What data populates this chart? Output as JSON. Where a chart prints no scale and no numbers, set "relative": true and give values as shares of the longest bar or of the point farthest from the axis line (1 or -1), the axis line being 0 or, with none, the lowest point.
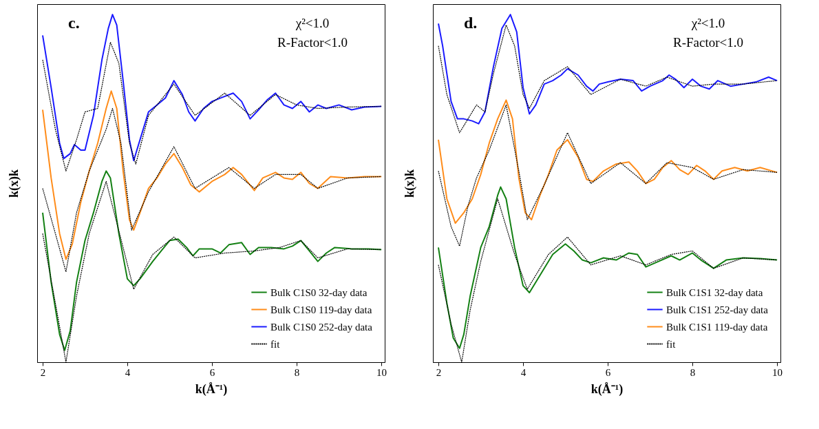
{
  "chart_data": [
    {
      "type": "line",
      "relative": true,
      "xlim": [
        1.87,
        10.08
      ],
      "xticks": [
        {
          "value": 2,
          "label": "2"
        },
        {
          "value": 4,
          "label": "4"
        },
        {
          "value": 6,
          "label": "6"
        },
        {
          "value": 8,
          "label": "8"
        },
        {
          "value": 10,
          "label": "10"
        }
      ],
      "xlabel": "k(Å⁻¹)",
      "ylabel": "k(x)k",
      "tick_labels": "x",
      "grid": false,
      "legend": "bottom right",
      "annotations": [
        "c.",
        "χ²<1.0",
        "R-Factor<1.0"
      ],
      "series": [
        {
          "name": "Bulk C1S0 32-day data",
          "color": "#138013",
          "line_style": "solid",
          "x": [
            2,
            2.2,
            2.4,
            2.52,
            2.65,
            2.8,
            3,
            3.2,
            3.4,
            3.5,
            3.6,
            3.8,
            4,
            4.15,
            4.3,
            4.6,
            4.8,
            5,
            5.2,
            5.4,
            5.55,
            5.7,
            6,
            6.2,
            6.4,
            6.7,
            6.9,
            7.1,
            7.4,
            7.7,
            7.9,
            8.1,
            8.3,
            8.5,
            8.7,
            8.9,
            9.3,
            9.7,
            10
          ],
          "values": [
            0.43,
            0.23,
            0.08,
            0.034,
            0.09,
            0.23,
            0.35,
            0.43,
            0.52,
            0.55,
            0.53,
            0.37,
            0.24,
            0.22,
            0.24,
            0.29,
            0.32,
            0.35,
            0.354,
            0.33,
            0.306,
            0.326,
            0.326,
            0.314,
            0.338,
            0.344,
            0.31,
            0.33,
            0.33,
            0.326,
            0.334,
            0.35,
            0.32,
            0.29,
            0.314,
            0.33,
            0.326,
            0.326,
            0.324
          ]
        },
        {
          "name": "Bulk C1S0 119-day data",
          "color": "#ff8c1a",
          "line_style": "solid",
          "x": [
            2,
            2.2,
            2.4,
            2.55,
            2.7,
            2.9,
            3.1,
            3.3,
            3.5,
            3.62,
            3.75,
            3.9,
            4.05,
            4.15,
            4.3,
            4.5,
            4.7,
            4.9,
            5.1,
            5.3,
            5.5,
            5.7,
            6,
            6.3,
            6.5,
            6.7,
            7,
            7.2,
            7.5,
            7.7,
            7.9,
            8.1,
            8.3,
            8.5,
            8.8,
            9.2,
            9.6,
            10
          ],
          "values": [
            0.726,
            0.53,
            0.37,
            0.296,
            0.34,
            0.46,
            0.55,
            0.63,
            0.73,
            0.78,
            0.73,
            0.55,
            0.41,
            0.38,
            0.43,
            0.5,
            0.53,
            0.57,
            0.6,
            0.56,
            0.51,
            0.49,
            0.52,
            0.54,
            0.56,
            0.54,
            0.494,
            0.53,
            0.546,
            0.53,
            0.526,
            0.546,
            0.514,
            0.5,
            0.534,
            0.53,
            0.534,
            0.534
          ]
        },
        {
          "name": "Bulk C1S0 252-day data",
          "color": "#1a1aff",
          "line_style": "solid",
          "x": [
            2,
            2.2,
            2.4,
            2.5,
            2.65,
            2.75,
            2.9,
            3,
            3.2,
            3.4,
            3.55,
            3.65,
            3.75,
            3.9,
            4.05,
            4.15,
            4.3,
            4.5,
            4.7,
            4.9,
            5.1,
            5.3,
            5.45,
            5.6,
            5.8,
            6,
            6.2,
            6.5,
            6.7,
            6.9,
            7.1,
            7.3,
            7.5,
            7.7,
            7.9,
            8.1,
            8.3,
            8.5,
            8.7,
            9,
            9.3,
            9.6,
            10
          ],
          "values": [
            0.94,
            0.79,
            0.63,
            0.586,
            0.6,
            0.626,
            0.61,
            0.61,
            0.71,
            0.87,
            0.96,
            1,
            0.97,
            0.81,
            0.64,
            0.58,
            0.64,
            0.72,
            0.74,
            0.76,
            0.81,
            0.77,
            0.72,
            0.694,
            0.73,
            0.75,
            0.76,
            0.774,
            0.75,
            0.7,
            0.726,
            0.754,
            0.774,
            0.74,
            0.73,
            0.75,
            0.72,
            0.74,
            0.73,
            0.74,
            0.726,
            0.734,
            0.736
          ]
        },
        {
          "name": "fit",
          "color": "#000000",
          "line_style": "dotted",
          "x": [
            2,
            2.3,
            2.55,
            2.8,
            3,
            3.3,
            3.6,
            3.8,
            4.05,
            4.2,
            4.5,
            5.1,
            5.6,
            6.3,
            6.9,
            7.5,
            8,
            8.5,
            9.2,
            10
          ],
          "values": [
            0.87,
            0.67,
            0.55,
            0.64,
            0.72,
            0.73,
            0.92,
            0.86,
            0.63,
            0.57,
            0.71,
            0.8,
            0.71,
            0.774,
            0.71,
            0.77,
            0.74,
            0.73,
            0.734,
            0.736
          ]
        },
        {
          "color": "#000000",
          "line_style": "dotted",
          "x": [
            2,
            2.3,
            2.55,
            2.8,
            3.1,
            3.5,
            3.65,
            3.85,
            4.1,
            4.5,
            5.1,
            5.6,
            6.4,
            7,
            7.5,
            8.1,
            8.5,
            9.2,
            10
          ],
          "values": [
            0.5,
            0.37,
            0.26,
            0.43,
            0.55,
            0.67,
            0.73,
            0.63,
            0.38,
            0.49,
            0.62,
            0.5,
            0.56,
            0.5,
            0.54,
            0.54,
            0.5,
            0.53,
            0.534
          ]
        },
        {
          "color": "#000000",
          "line_style": "dotted",
          "x": [
            2,
            2.3,
            2.55,
            2.8,
            3.1,
            3.5,
            3.9,
            4.15,
            4.6,
            5.1,
            5.6,
            6.3,
            7,
            7.6,
            8.1,
            8.5,
            9.2,
            10
          ],
          "values": [
            0.37,
            0.17,
            0,
            0.19,
            0.37,
            0.52,
            0.33,
            0.21,
            0.31,
            0.36,
            0.3,
            0.314,
            0.32,
            0.33,
            0.35,
            0.3,
            0.326,
            0.324
          ]
        }
      ]
    },
    {
      "type": "line",
      "relative": true,
      "xlim": [
        1.87,
        10.08
      ],
      "xticks": [
        {
          "value": 2,
          "label": "2"
        },
        {
          "value": 4,
          "label": "4"
        },
        {
          "value": 6,
          "label": "6"
        },
        {
          "value": 8,
          "label": "8"
        },
        {
          "value": 10,
          "label": "10"
        }
      ],
      "xlabel": "k(Å⁻¹)",
      "ylabel": "k(x)k",
      "tick_labels": "x",
      "grid": false,
      "legend": "bottom right",
      "annotations": [
        "d.",
        "χ²<1.0",
        "R-Factor<1.0"
      ],
      "series": [
        {
          "name": "Bulk C1S1 32-day data",
          "color": "#138013",
          "line_style": "solid",
          "x": [
            2,
            2.2,
            2.35,
            2.5,
            2.6,
            2.75,
            3,
            3.2,
            3.4,
            3.47,
            3.6,
            3.8,
            4,
            4.15,
            4.4,
            4.7,
            5,
            5.2,
            5.4,
            5.6,
            5.9,
            6.2,
            6.5,
            6.7,
            6.9,
            7.2,
            7.5,
            7.7,
            8,
            8.2,
            8.5,
            8.8,
            9.2,
            9.6,
            10
          ],
          "values": [
            0.33,
            0.17,
            0.07,
            0.04,
            0.08,
            0.19,
            0.33,
            0.39,
            0.48,
            0.504,
            0.47,
            0.33,
            0.22,
            0.2,
            0.25,
            0.31,
            0.34,
            0.32,
            0.294,
            0.286,
            0.3,
            0.294,
            0.314,
            0.31,
            0.274,
            0.29,
            0.306,
            0.294,
            0.314,
            0.294,
            0.27,
            0.294,
            0.3,
            0.298,
            0.294
          ]
        },
        {
          "name": "Bulk C1S1 252-day data",
          "color": "#1a1aff",
          "line_style": "solid",
          "x": [
            2,
            2.1,
            2.3,
            2.45,
            2.6,
            2.8,
            2.95,
            3.1,
            3.3,
            3.5,
            3.7,
            3.85,
            4,
            4.15,
            4.3,
            4.5,
            4.7,
            4.9,
            5.05,
            5.3,
            5.5,
            5.65,
            5.8,
            6,
            6.3,
            6.6,
            6.8,
            7,
            7.3,
            7.45,
            7.6,
            7.8,
            8,
            8.2,
            8.4,
            8.6,
            8.9,
            9.2,
            9.5,
            9.8,
            10
          ],
          "values": [
            0.974,
            0.91,
            0.75,
            0.7,
            0.7,
            0.694,
            0.686,
            0.72,
            0.85,
            0.96,
            1,
            0.95,
            0.79,
            0.714,
            0.74,
            0.8,
            0.81,
            0.826,
            0.844,
            0.826,
            0.794,
            0.78,
            0.8,
            0.806,
            0.814,
            0.81,
            0.78,
            0.794,
            0.81,
            0.826,
            0.814,
            0.79,
            0.814,
            0.794,
            0.786,
            0.81,
            0.794,
            0.8,
            0.806,
            0.82,
            0.81
          ]
        },
        {
          "name": "Bulk C1S1 119-day data",
          "color": "#ff8c1a",
          "line_style": "solid",
          "x": [
            2,
            2.2,
            2.4,
            2.6,
            2.8,
            3,
            3.2,
            3.4,
            3.6,
            3.75,
            3.9,
            4.05,
            4.2,
            4.4,
            4.6,
            4.8,
            5.05,
            5.3,
            5.5,
            5.65,
            5.9,
            6.2,
            6.5,
            6.7,
            6.9,
            7.1,
            7.3,
            7.5,
            7.7,
            7.9,
            8.1,
            8.3,
            8.5,
            8.7,
            9,
            9.3,
            9.6,
            10
          ],
          "values": [
            0.64,
            0.47,
            0.4,
            0.43,
            0.47,
            0.54,
            0.63,
            0.7,
            0.754,
            0.7,
            0.53,
            0.43,
            0.41,
            0.48,
            0.54,
            0.61,
            0.64,
            0.59,
            0.526,
            0.52,
            0.55,
            0.57,
            0.576,
            0.55,
            0.514,
            0.526,
            0.56,
            0.58,
            0.554,
            0.54,
            0.566,
            0.55,
            0.526,
            0.55,
            0.56,
            0.55,
            0.56,
            0.546
          ]
        },
        {
          "name": "fit",
          "color": "#000000",
          "line_style": "dotted",
          "x": [
            2,
            2.2,
            2.5,
            2.7,
            2.9,
            3.1,
            3.3,
            3.6,
            3.8,
            4,
            4.15,
            4.5,
            5.05,
            5.6,
            6.3,
            6.9,
            7.4,
            8,
            8.5,
            9.2,
            10
          ],
          "values": [
            0.91,
            0.77,
            0.66,
            0.7,
            0.74,
            0.72,
            0.83,
            0.97,
            0.91,
            0.77,
            0.73,
            0.81,
            0.85,
            0.77,
            0.814,
            0.794,
            0.82,
            0.794,
            0.8,
            0.8,
            0.81
          ]
        },
        {
          "color": "#000000",
          "line_style": "dotted",
          "x": [
            2,
            2.3,
            2.5,
            2.7,
            2.9,
            3.2,
            3.6,
            3.9,
            4.1,
            4.5,
            5.05,
            5.6,
            6.3,
            6.9,
            7.4,
            8,
            8.5,
            9.2,
            10
          ],
          "values": [
            0.55,
            0.39,
            0.334,
            0.45,
            0.53,
            0.61,
            0.74,
            0.55,
            0.41,
            0.51,
            0.66,
            0.514,
            0.574,
            0.514,
            0.574,
            0.56,
            0.526,
            0.554,
            0.546
          ]
        },
        {
          "color": "#000000",
          "line_style": "dotted",
          "x": [
            2,
            2.3,
            2.55,
            2.75,
            3,
            3.4,
            3.8,
            4.1,
            4.6,
            5.05,
            5.6,
            6.3,
            6.9,
            7.5,
            8,
            8.5,
            9.2,
            10
          ],
          "values": [
            0.28,
            0.11,
            0,
            0.15,
            0.29,
            0.47,
            0.31,
            0.21,
            0.31,
            0.36,
            0.28,
            0.306,
            0.28,
            0.31,
            0.32,
            0.27,
            0.3,
            0.294
          ]
        }
      ]
    }
  ]
}
